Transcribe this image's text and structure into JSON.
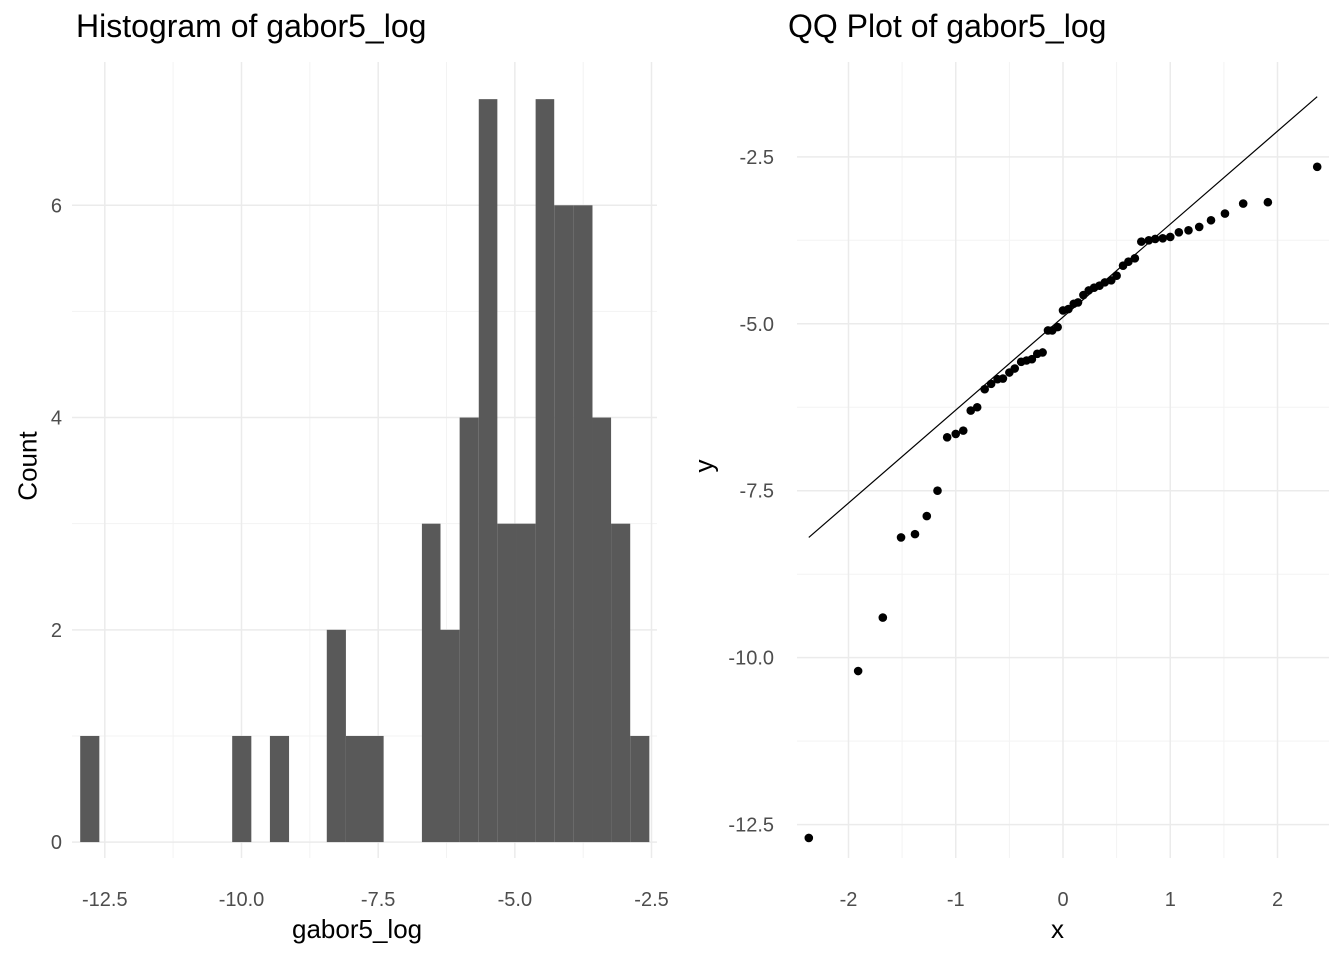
{
  "chart_data": [
    {
      "type": "bar",
      "title": "Histogram of gabor5_log",
      "xlabel": "gabor5_log",
      "ylabel": "Count",
      "xlim": [
        -13.1,
        -2.4
      ],
      "ylim": [
        -0.15,
        7.35
      ],
      "x_ticks": [
        -12.5,
        -10.0,
        -7.5,
        -5.0,
        -2.5
      ],
      "x_tick_labels": [
        "-12.5",
        "-10.0",
        "-7.5",
        "-5.0",
        "-2.5"
      ],
      "y_ticks": [
        0,
        2,
        4,
        6
      ],
      "y_tick_labels": [
        "0",
        "2",
        "4",
        "6"
      ],
      "grid": true,
      "bar_color": "#595959",
      "bins": [
        {
          "x0": -12.95,
          "x1": -12.6,
          "count": 1
        },
        {
          "x0": -10.17,
          "x1": -9.82,
          "count": 1
        },
        {
          "x0": -9.48,
          "x1": -9.13,
          "count": 1
        },
        {
          "x0": -8.44,
          "x1": -8.09,
          "count": 2
        },
        {
          "x0": -8.09,
          "x1": -7.75,
          "count": 1
        },
        {
          "x0": -7.75,
          "x1": -7.4,
          "count": 1
        },
        {
          "x0": -6.7,
          "x1": -6.36,
          "count": 3
        },
        {
          "x0": -6.36,
          "x1": -6.01,
          "count": 2
        },
        {
          "x0": -6.01,
          "x1": -5.66,
          "count": 4
        },
        {
          "x0": -5.66,
          "x1": -5.32,
          "count": 7
        },
        {
          "x0": -5.32,
          "x1": -4.97,
          "count": 3
        },
        {
          "x0": -4.97,
          "x1": -4.62,
          "count": 3
        },
        {
          "x0": -4.62,
          "x1": -4.28,
          "count": 7
        },
        {
          "x0": -4.28,
          "x1": -3.93,
          "count": 6
        },
        {
          "x0": -3.93,
          "x1": -3.58,
          "count": 6
        },
        {
          "x0": -3.58,
          "x1": -3.24,
          "count": 4
        },
        {
          "x0": -3.24,
          "x1": -2.89,
          "count": 3
        },
        {
          "x0": -2.89,
          "x1": -2.54,
          "count": 1
        }
      ]
    },
    {
      "type": "scatter",
      "title": "QQ Plot of gabor5_log",
      "xlabel": "x",
      "ylabel": "y",
      "xlim": [
        -2.48,
        2.48
      ],
      "ylim": [
        -13.0,
        -1.08
      ],
      "x_ticks": [
        -2,
        -1,
        0,
        1,
        2
      ],
      "x_tick_labels": [
        "-2",
        "-1",
        "0",
        "1",
        "2"
      ],
      "y_ticks": [
        -12.5,
        -10.0,
        -7.5,
        -5.0,
        -2.5
      ],
      "y_tick_labels": [
        "-12.5",
        "-10.0",
        "-7.5",
        "-5.0",
        "-2.5"
      ],
      "grid": true,
      "point_color": "#000000",
      "line": {
        "x": [
          -2.37,
          2.37
        ],
        "y": [
          -8.2,
          -1.6
        ]
      },
      "points": [
        [
          -2.37,
          -12.7
        ],
        [
          -1.91,
          -10.2
        ],
        [
          -1.68,
          -9.4
        ],
        [
          -1.51,
          -8.2
        ],
        [
          -1.38,
          -8.15
        ],
        [
          -1.27,
          -7.88
        ],
        [
          -1.17,
          -7.5
        ],
        [
          -1.08,
          -6.7
        ],
        [
          -1.0,
          -6.65
        ],
        [
          -0.93,
          -6.6
        ],
        [
          -0.86,
          -6.3
        ],
        [
          -0.8,
          -6.25
        ],
        [
          -0.73,
          -5.98
        ],
        [
          -0.67,
          -5.9
        ],
        [
          -0.61,
          -5.83
        ],
        [
          -0.56,
          -5.82
        ],
        [
          -0.5,
          -5.73
        ],
        [
          -0.45,
          -5.67
        ],
        [
          -0.39,
          -5.57
        ],
        [
          -0.34,
          -5.55
        ],
        [
          -0.29,
          -5.53
        ],
        [
          -0.24,
          -5.45
        ],
        [
          -0.19,
          -5.43
        ],
        [
          -0.14,
          -5.1
        ],
        [
          -0.1,
          -5.1
        ],
        [
          -0.05,
          -5.05
        ],
        [
          0.0,
          -4.8
        ],
        [
          0.05,
          -4.78
        ],
        [
          0.1,
          -4.7
        ],
        [
          0.14,
          -4.68
        ],
        [
          0.19,
          -4.57
        ],
        [
          0.24,
          -4.5
        ],
        [
          0.29,
          -4.46
        ],
        [
          0.34,
          -4.43
        ],
        [
          0.39,
          -4.38
        ],
        [
          0.45,
          -4.35
        ],
        [
          0.5,
          -4.28
        ],
        [
          0.56,
          -4.13
        ],
        [
          0.61,
          -4.07
        ],
        [
          0.67,
          -4.02
        ],
        [
          0.73,
          -3.77
        ],
        [
          0.8,
          -3.75
        ],
        [
          0.86,
          -3.73
        ],
        [
          0.93,
          -3.72
        ],
        [
          1.0,
          -3.7
        ],
        [
          1.08,
          -3.63
        ],
        [
          1.17,
          -3.6
        ],
        [
          1.27,
          -3.55
        ],
        [
          1.38,
          -3.45
        ],
        [
          1.51,
          -3.35
        ],
        [
          1.68,
          -3.2
        ],
        [
          1.91,
          -3.18
        ],
        [
          2.37,
          -2.65
        ]
      ]
    }
  ]
}
